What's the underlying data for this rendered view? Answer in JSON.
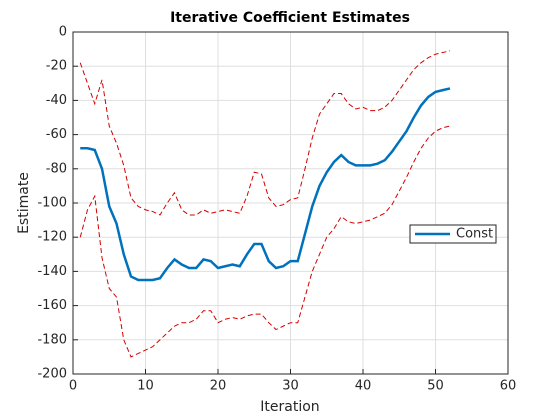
{
  "chart_data": {
    "type": "line",
    "title": "Iterative Coefficient Estimates",
    "xlabel": "Iteration",
    "ylabel": "Estimate",
    "x": [
      1,
      2,
      3,
      4,
      5,
      6,
      7,
      8,
      9,
      10,
      11,
      12,
      13,
      14,
      15,
      16,
      17,
      18,
      19,
      20,
      21,
      22,
      23,
      24,
      25,
      26,
      27,
      28,
      29,
      30,
      31,
      32,
      33,
      34,
      35,
      36,
      37,
      38,
      39,
      40,
      41,
      42,
      43,
      44,
      45,
      46,
      47,
      48,
      49,
      50,
      51,
      52
    ],
    "series": [
      {
        "name": "Const",
        "color": "#0072bd",
        "values": [
          -68,
          -68,
          -69,
          -80,
          -102,
          -112,
          -130,
          -143,
          -145,
          -145,
          -145,
          -144,
          -138,
          -133,
          -136,
          -138,
          -138,
          -133,
          -134,
          -138,
          -137,
          -136,
          -137,
          -130,
          -124,
          -124,
          -134,
          -138,
          -137,
          -134,
          -134,
          -118,
          -102,
          -90,
          -82,
          -76,
          -72,
          -76,
          -78,
          -78,
          -78,
          -77,
          -75,
          -70,
          -64,
          -58,
          -50,
          -43,
          -38,
          -35,
          -34,
          -33
        ]
      }
    ],
    "bounds_color": "#d40000",
    "upper": [
      -18,
      -30,
      -42,
      -28,
      -55,
      -65,
      -78,
      -97,
      -102,
      -104,
      -105,
      -107,
      -100,
      -94,
      -104,
      -107,
      -107,
      -104,
      -106,
      -105,
      -104,
      -105,
      -106,
      -96,
      -82,
      -83,
      -97,
      -102,
      -101,
      -98,
      -97,
      -80,
      -62,
      -48,
      -42,
      -36,
      -36,
      -42,
      -45,
      -44,
      -46,
      -46,
      -44,
      -40,
      -34,
      -28,
      -22,
      -18,
      -15,
      -13,
      -12,
      -11
    ],
    "lower": [
      -120,
      -104,
      -96,
      -132,
      -150,
      -155,
      -180,
      -190,
      -188,
      -186,
      -184,
      -180,
      -176,
      -172,
      -170,
      -170,
      -168,
      -163,
      -163,
      -170,
      -168,
      -167,
      -168,
      -166,
      -165,
      -165,
      -170,
      -174,
      -172,
      -170,
      -170,
      -155,
      -140,
      -130,
      -120,
      -115,
      -108,
      -111,
      -112,
      -111,
      -110,
      -108,
      -106,
      -101,
      -93,
      -85,
      -76,
      -68,
      -62,
      -58,
      -56,
      -55
    ],
    "xlim": [
      0,
      60
    ],
    "xticks": [
      0,
      10,
      20,
      30,
      40,
      50,
      60
    ],
    "ylim": [
      -200,
      0
    ],
    "yticks": [
      -200,
      -180,
      -160,
      -140,
      -120,
      -100,
      -80,
      -60,
      -40,
      -20,
      0
    ],
    "grid": true,
    "legend": "east"
  }
}
